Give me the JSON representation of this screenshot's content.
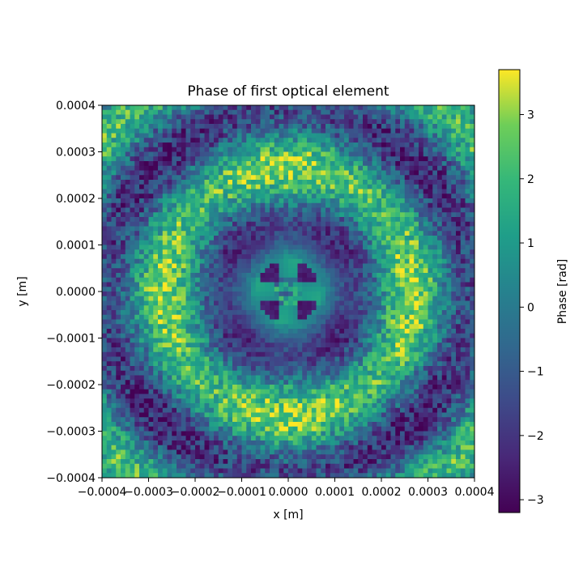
{
  "chart_data": {
    "type": "heatmap",
    "title": "Phase of first optical element",
    "xlabel": "x [m]",
    "ylabel": "y [m]",
    "xlim": [
      -0.0004,
      0.0004
    ],
    "ylim": [
      -0.0004,
      0.0004
    ],
    "x_ticks": [
      {
        "value": -0.0004,
        "label": "−0.0004"
      },
      {
        "value": -0.0003,
        "label": "−0.0003"
      },
      {
        "value": -0.0002,
        "label": "−0.0002"
      },
      {
        "value": -0.0001,
        "label": "−0.0001"
      },
      {
        "value": 0.0,
        "label": "0.0000"
      },
      {
        "value": 0.0001,
        "label": "0.0001"
      },
      {
        "value": 0.0002,
        "label": "0.0002"
      },
      {
        "value": 0.0003,
        "label": "0.0003"
      },
      {
        "value": 0.0004,
        "label": "0.0004"
      }
    ],
    "y_ticks": [
      {
        "value": 0.0004,
        "label": "0.0004"
      },
      {
        "value": 0.0003,
        "label": "0.0003"
      },
      {
        "value": 0.0002,
        "label": "0.0002"
      },
      {
        "value": 0.0001,
        "label": "0.0001"
      },
      {
        "value": 0.0,
        "label": "0.0000"
      },
      {
        "value": -0.0001,
        "label": "−0.0001"
      },
      {
        "value": -0.0002,
        "label": "−0.0002"
      },
      {
        "value": -0.0003,
        "label": "−0.0003"
      },
      {
        "value": -0.0004,
        "label": "−0.0004"
      }
    ],
    "colormap": "viridis",
    "colorbar": {
      "label": "Phase [rad]",
      "range": [
        -3.2,
        3.7
      ],
      "ticks": [
        {
          "value": 3,
          "label": "3"
        },
        {
          "value": 2,
          "label": "2"
        },
        {
          "value": 1,
          "label": "1"
        },
        {
          "value": 0,
          "label": "0"
        },
        {
          "value": -1,
          "label": "−1"
        },
        {
          "value": -2,
          "label": "−2"
        },
        {
          "value": -3,
          "label": "−3"
        }
      ]
    },
    "grid_resolution": 80,
    "grid": false
  }
}
